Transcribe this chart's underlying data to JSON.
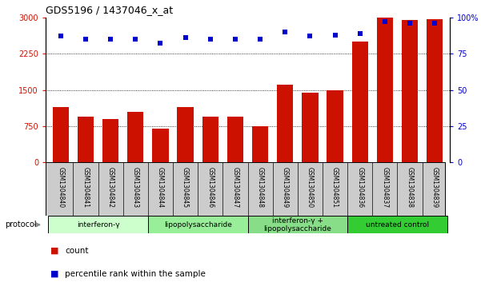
{
  "title": "GDS5196 / 1437046_x_at",
  "samples": [
    "GSM1304840",
    "GSM1304841",
    "GSM1304842",
    "GSM1304843",
    "GSM1304844",
    "GSM1304845",
    "GSM1304846",
    "GSM1304847",
    "GSM1304848",
    "GSM1304849",
    "GSM1304850",
    "GSM1304851",
    "GSM1304836",
    "GSM1304837",
    "GSM1304838",
    "GSM1304839"
  ],
  "counts": [
    1150,
    950,
    900,
    1050,
    700,
    1150,
    950,
    950,
    750,
    1600,
    1450,
    1500,
    2500,
    3000,
    2950,
    2970
  ],
  "percentiles": [
    87,
    85,
    85,
    85,
    82,
    86,
    85,
    85,
    85,
    90,
    87,
    88,
    89,
    97,
    96,
    96
  ],
  "groups": [
    {
      "label": "interferon-γ",
      "start": 0,
      "end": 4,
      "color": "#ccffcc"
    },
    {
      "label": "lipopolysaccharide",
      "start": 4,
      "end": 8,
      "color": "#99ee99"
    },
    {
      "label": "interferon-γ +\nlipopolysaccharide",
      "start": 8,
      "end": 12,
      "color": "#88dd88"
    },
    {
      "label": "untreated control",
      "start": 12,
      "end": 16,
      "color": "#33cc33"
    }
  ],
  "bar_color": "#cc1100",
  "dot_color": "#0000cc",
  "ylim_left": [
    0,
    3000
  ],
  "ylim_right": [
    0,
    100
  ],
  "yticks_left": [
    0,
    750,
    1500,
    2250,
    3000
  ],
  "yticks_right": [
    0,
    25,
    50,
    75,
    100
  ],
  "grid_values": [
    750,
    1500,
    2250
  ],
  "label_box_color": "#cccccc",
  "bg_color": "#ffffff",
  "tick_label_color_left": "#cc1100",
  "tick_label_color_right": "#0000cc",
  "legend_count_label": "count",
  "legend_pct_label": "percentile rank within the sample",
  "protocol_label": "protocol"
}
